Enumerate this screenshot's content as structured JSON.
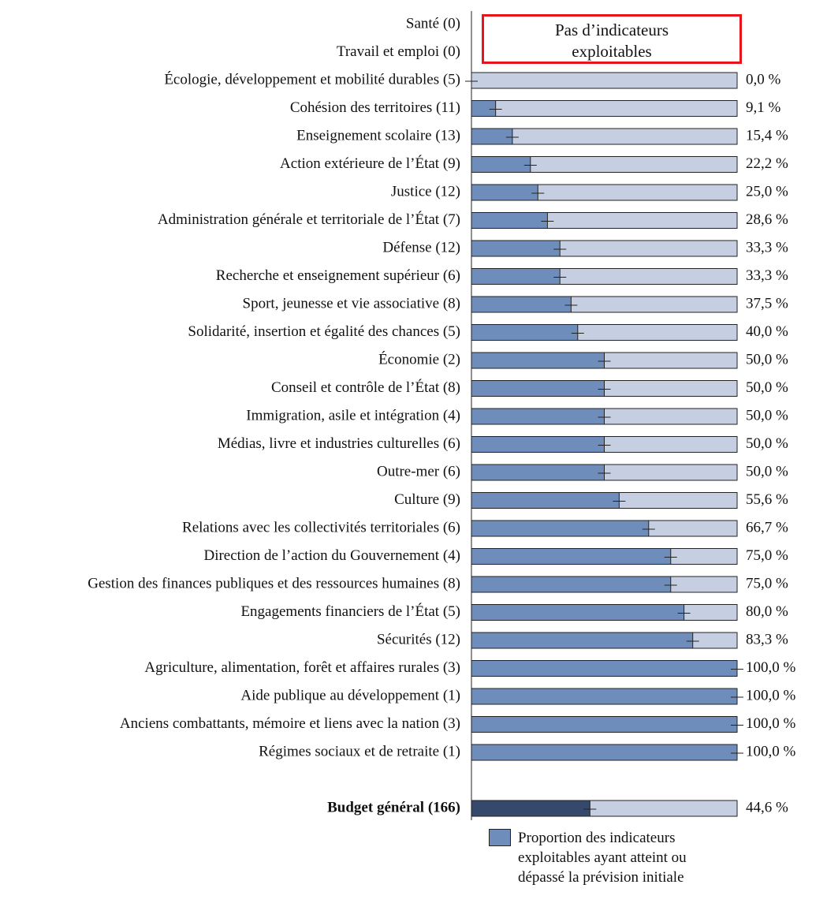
{
  "chart_data": {
    "type": "bar",
    "orientation": "horizontal",
    "categories": [
      "Santé (0)",
      "Travail et emploi (0)",
      "Écologie, développement et mobilité durables (5)",
      "Cohésion des territoires (11)",
      "Enseignement scolaire (13)",
      "Action extérieure de l’État (9)",
      "Justice (12)",
      "Administration générale et territoriale de l’État (7)",
      "Défense (12)",
      "Recherche et enseignement supérieur (6)",
      "Sport, jeunesse et vie associative (8)",
      "Solidarité, insertion et égalité des chances (5)",
      "Économie (2)",
      "Conseil et contrôle de l’État (8)",
      "Immigration, asile et intégration (4)",
      "Médias, livre et industries culturelles (6)",
      "Outre-mer (6)",
      "Culture (9)",
      "Relations avec les collectivités territoriales (6)",
      "Direction de l’action du Gouvernement (4)",
      "Gestion des finances publiques et des ressources humaines (8)",
      "Engagements financiers de l’État (5)",
      "Sécurités (12)",
      "Agriculture, alimentation, forêt et affaires rurales (3)",
      "Aide publique au développement (1)",
      "Anciens combattants, mémoire et liens avec la nation (3)",
      "Régimes sociaux et de retraite (1)",
      null,
      "Budget général (166)"
    ],
    "series": [
      {
        "name": "Proportion des indicateurs exploitables ayant atteint ou dépassé la prévision initiale",
        "color": "#6f8dba",
        "values": [
          null,
          null,
          0,
          9.1,
          15.4,
          22.2,
          25,
          28.6,
          33.3,
          33.3,
          37.5,
          40,
          50,
          50,
          50,
          50,
          50,
          55.6,
          66.7,
          75,
          75,
          80,
          83.3,
          100,
          100,
          100,
          100,
          null,
          44.6
        ],
        "value_labels": [
          null,
          null,
          "0,0 %",
          "9,1 %",
          "15,4 %",
          "22,2 %",
          "25,0 %",
          "28,6 %",
          "33,3 %",
          "33,3 %",
          "37,5 %",
          "40,0 %",
          "50,0 %",
          "50,0 %",
          "50,0 %",
          "50,0 %",
          "50,0 %",
          "55,6 %",
          "66,7 %",
          "75,0 %",
          "75,0 %",
          "80,0 %",
          "83,3 %",
          "100,0 %",
          "100,0 %",
          "100,0 %",
          "100,0 %",
          null,
          "44,6 %"
        ]
      }
    ],
    "highlight_color": "#34496b",
    "remainder_color": "#c5cfe1",
    "xlim": [
      0,
      100
    ],
    "annotation": "Pas d’indicateurs exploitables",
    "annotation_color": "#e8141b"
  }
}
